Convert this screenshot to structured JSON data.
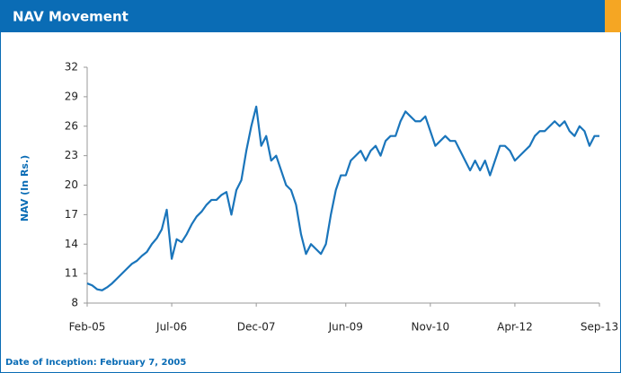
{
  "header": {
    "title": "NAV Movement"
  },
  "chart_data": {
    "type": "line",
    "ylabel": "NAV (In Rs.)",
    "x": [
      0,
      1,
      2,
      3,
      4,
      5,
      6,
      7,
      8,
      9,
      10,
      11,
      12,
      13,
      14,
      15,
      16,
      17,
      18,
      19,
      20,
      21,
      22,
      23,
      24,
      25,
      26,
      27,
      28,
      29,
      30,
      31,
      32,
      33,
      34,
      35,
      36,
      37,
      38,
      39,
      40,
      41,
      42,
      43,
      44,
      45,
      46,
      47,
      48,
      49,
      50,
      51,
      52,
      53,
      54,
      55,
      56,
      57,
      58,
      59,
      60,
      61,
      62,
      63,
      64,
      65,
      66,
      67,
      68,
      69,
      70,
      71,
      72,
      73,
      74,
      75,
      76,
      77,
      78,
      79,
      80,
      81,
      82,
      83,
      84,
      85,
      86,
      87,
      88,
      89,
      90,
      91,
      92,
      93,
      94,
      95,
      96,
      97,
      98,
      99,
      100,
      101,
      102,
      103
    ],
    "series": [
      {
        "name": "NAV",
        "color": "#1a75bb",
        "values": [
          10,
          9.8,
          9.4,
          9.3,
          9.6,
          10,
          10.5,
          11,
          11.5,
          12,
          12.3,
          12.8,
          13.2,
          14,
          14.6,
          15.5,
          17.5,
          12.5,
          14.5,
          14.2,
          15,
          16,
          16.8,
          17.3,
          18,
          18.5,
          18.5,
          19,
          19.3,
          17,
          19.5,
          20.5,
          23.5,
          26,
          28,
          24,
          25,
          22.5,
          23,
          21.5,
          20,
          19.5,
          18,
          15,
          13,
          14,
          13.5,
          13,
          14,
          17,
          19.5,
          21,
          21,
          22.5,
          23,
          23.5,
          22.5,
          23.5,
          24,
          23,
          24.5,
          25,
          25,
          26.5,
          27.5,
          27,
          26.5,
          26.5,
          27,
          25.5,
          24,
          24.5,
          25,
          24.5,
          24.5,
          23.5,
          22.5,
          21.5,
          22.5,
          21.5,
          22.5,
          21,
          22.5,
          24,
          24,
          23.5,
          22.5,
          23,
          23.5,
          24,
          25,
          25.5,
          25.5,
          26,
          26.5,
          26,
          26.5,
          25.5,
          25,
          26,
          25.5,
          24,
          25,
          25
        ]
      }
    ],
    "xlim": [
      0,
      103
    ],
    "xticks": [
      {
        "value": 0,
        "label": "Feb-05"
      },
      {
        "value": 17,
        "label": "Jul-06"
      },
      {
        "value": 34,
        "label": "Dec-07"
      },
      {
        "value": 52,
        "label": "Jun-09"
      },
      {
        "value": 69,
        "label": "Nov-10"
      },
      {
        "value": 86,
        "label": "Apr-12"
      },
      {
        "value": 103,
        "label": "Sep-13"
      }
    ],
    "ylim": [
      8,
      32
    ],
    "yticks": [
      8,
      11,
      14,
      17,
      20,
      23,
      26,
      29,
      32
    ]
  },
  "footer": {
    "note": "Date of Inception: February 7, 2005"
  }
}
